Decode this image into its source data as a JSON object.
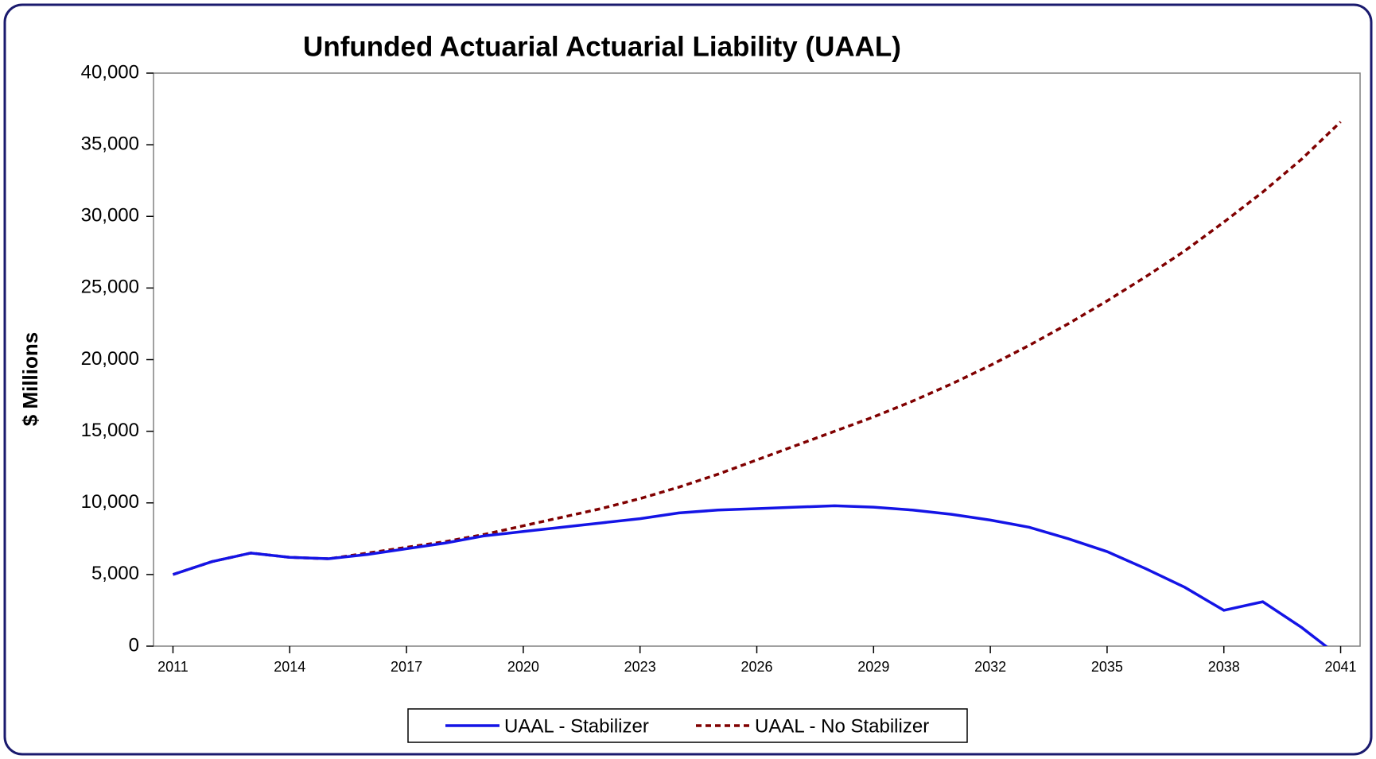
{
  "chart_data": {
    "type": "line",
    "title": "Unfunded Actuarial Actuarial Liability (UAAL)",
    "y_label": "$ Millions",
    "x": [
      2011,
      2012,
      2013,
      2014,
      2015,
      2016,
      2017,
      2018,
      2019,
      2020,
      2021,
      2022,
      2023,
      2024,
      2025,
      2026,
      2027,
      2028,
      2029,
      2030,
      2031,
      2032,
      2033,
      2034,
      2035,
      2036,
      2037,
      2038,
      2039,
      2040,
      2041
    ],
    "series": [
      {
        "name": "UAAL - Stabilizer",
        "color": "#1414e6",
        "dash": "solid",
        "values": [
          5000,
          5900,
          6500,
          6200,
          6100,
          6400,
          6800,
          7200,
          7700,
          8000,
          8300,
          8600,
          8900,
          9300,
          9500,
          9600,
          9700,
          9800,
          9700,
          9500,
          9200,
          8800,
          8300,
          7500,
          6600,
          5400,
          4100,
          2500,
          3100,
          1300,
          -800
        ]
      },
      {
        "name": "UAAL - No Stabilizer",
        "color": "#800000",
        "dash": "dashed",
        "values": [
          5000,
          5900,
          6500,
          6200,
          6100,
          6500,
          6900,
          7300,
          7800,
          8400,
          9000,
          9600,
          10300,
          11100,
          12000,
          13000,
          14000,
          15000,
          16000,
          17100,
          18300,
          19600,
          21000,
          22500,
          24100,
          25800,
          27600,
          29600,
          31700,
          34000,
          36600
        ]
      }
    ],
    "xlim": [
      2010.5,
      2041.5
    ],
    "xticks": [
      2011,
      2014,
      2017,
      2020,
      2023,
      2026,
      2029,
      2032,
      2035,
      2038,
      2041
    ],
    "ylim": [
      0,
      40000
    ],
    "yticks": [
      0,
      {
        "value": 5000,
        "label": "5,000"
      },
      {
        "value": 10000,
        "label": "10,000"
      },
      {
        "value": 15000,
        "label": "15,000"
      },
      {
        "value": 20000,
        "label": "20,000"
      },
      {
        "value": 25000,
        "label": "25,000"
      },
      {
        "value": 30000,
        "label": "30,000"
      },
      {
        "value": 35000,
        "label": "35,000"
      },
      {
        "value": 40000,
        "label": "40,000"
      }
    ],
    "legend": "bottom"
  }
}
